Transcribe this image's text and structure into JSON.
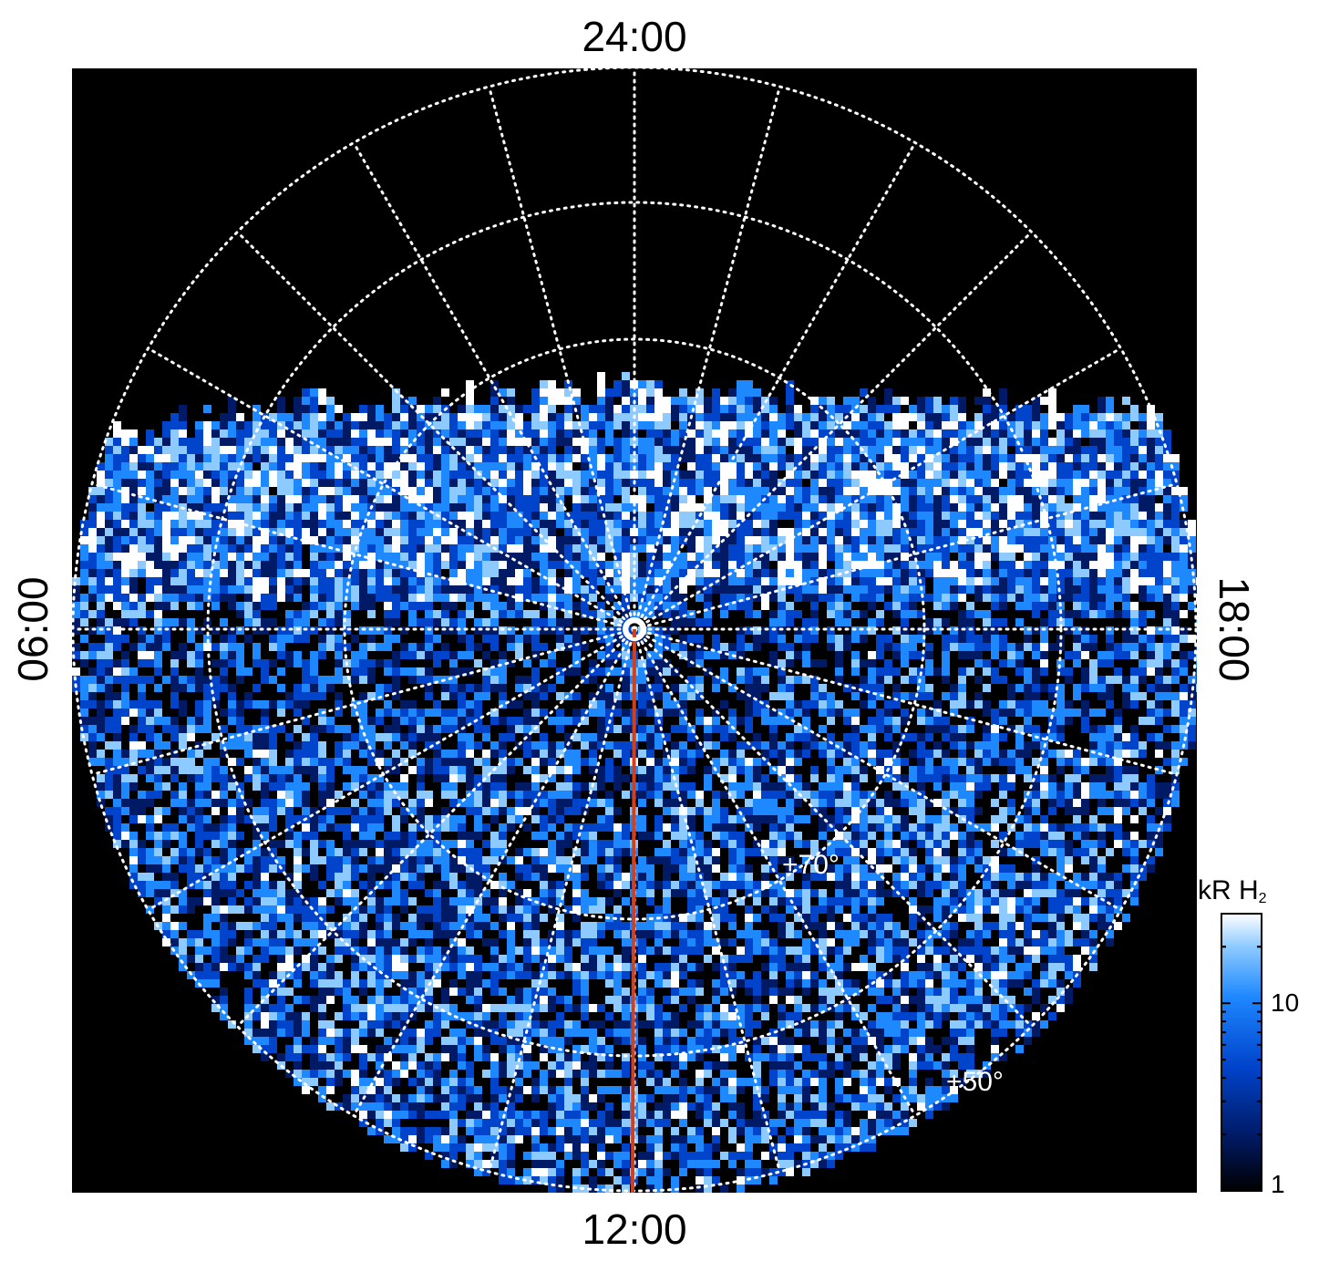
{
  "colors": {
    "background": "#000000",
    "grid": "#ffffff",
    "meridian_line": "#d2401a",
    "colormap": [
      "#000000",
      "#001a66",
      "#0044cc",
      "#1e88ff",
      "#8ccaff",
      "#ffffff"
    ]
  },
  "labels": {
    "lt_top": "24:00",
    "lt_bottom": "12:00",
    "lt_left": "06:00",
    "lt_right": "18:00",
    "lat_70": "+70°",
    "lat_50": "+50°"
  },
  "colorbar": {
    "title_main": "kR H",
    "title_sub": "2",
    "scale": "log",
    "range": [
      1,
      30
    ],
    "ticks": [
      {
        "value": 1,
        "label": "1"
      },
      {
        "value": 10,
        "label": "10"
      }
    ]
  }
}
